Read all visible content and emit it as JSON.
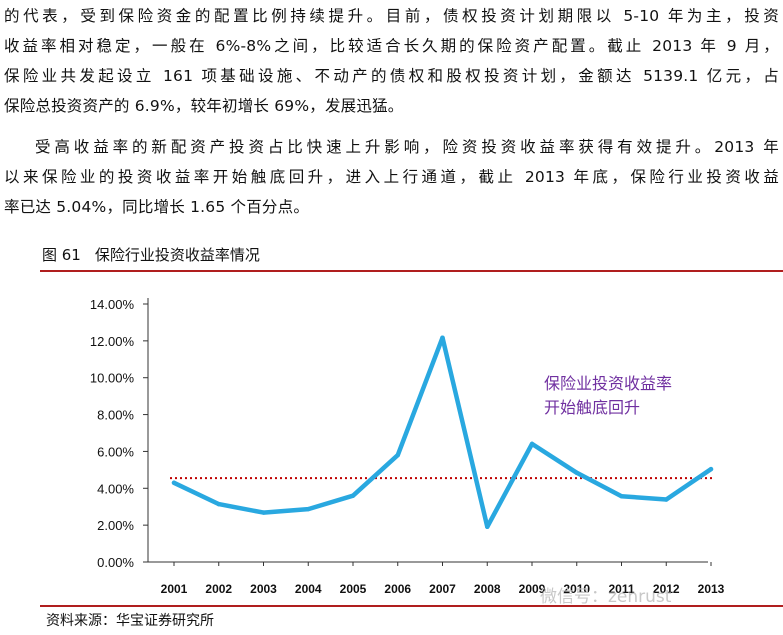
{
  "paragraphs": {
    "p1": [
      "的代表，受到保险资金的配置比例持续提升。目前，债权投资计划期限以 5-10 年为主，投资",
      "收益率相对稳定，一般在 6%-8%之间，比较适合长久期的保险资产配置。截止 2013 年 9 月，",
      "保险业共发起设立 161 项基础设施、不动产的债权和股权投资计划，金额达 5139.1 亿元，占",
      "保险总投资资产的 6.9%，较年初增长 69%，发展迅猛。"
    ],
    "p2": [
      "受高收益率的新配资产投资占比快速上升影响，险资投资收益率获得有效提升。2013 年",
      "以来保险业的投资收益率开始触底回升，进入上行通道，截止 2013 年底，保险行业投资收益",
      "率已达 5.04%，同比增长 1.65 个百分点。"
    ]
  },
  "figure": {
    "number": "图 61",
    "title": "保险行业投资收益率情况",
    "source": "资料来源：华宝证券研究所"
  },
  "watermark": "微信号：zenrust",
  "colors": {
    "line": "#29a8e0",
    "reference": "#c00000",
    "annotation": "#7030a0",
    "rule": "#b01e1e"
  },
  "chart_data": {
    "type": "line",
    "title": "保险行业投资收益率情况",
    "categories": [
      "2001",
      "2002",
      "2003",
      "2004",
      "2005",
      "2006",
      "2007",
      "2008",
      "2009",
      "2010",
      "2011",
      "2012",
      "2013"
    ],
    "series": [
      {
        "name": "保险行业投资收益率",
        "values": [
          4.3,
          3.14,
          2.68,
          2.87,
          3.6,
          5.8,
          12.17,
          1.91,
          6.41,
          4.84,
          3.57,
          3.39,
          5.04
        ]
      }
    ],
    "reference_line": {
      "value": 4.55,
      "style": "dotted"
    },
    "yticks": [
      0,
      2,
      4,
      6,
      8,
      10,
      12,
      14
    ],
    "ytick_labels": [
      "0.00%",
      "2.00%",
      "4.00%",
      "6.00%",
      "8.00%",
      "10.00%",
      "12.00%",
      "14.00%"
    ],
    "ylim": [
      0,
      14
    ],
    "annotation": [
      "保险业投资收益率",
      "开始触底回升"
    ],
    "xlabel": "",
    "ylabel": "",
    "grid": false
  }
}
